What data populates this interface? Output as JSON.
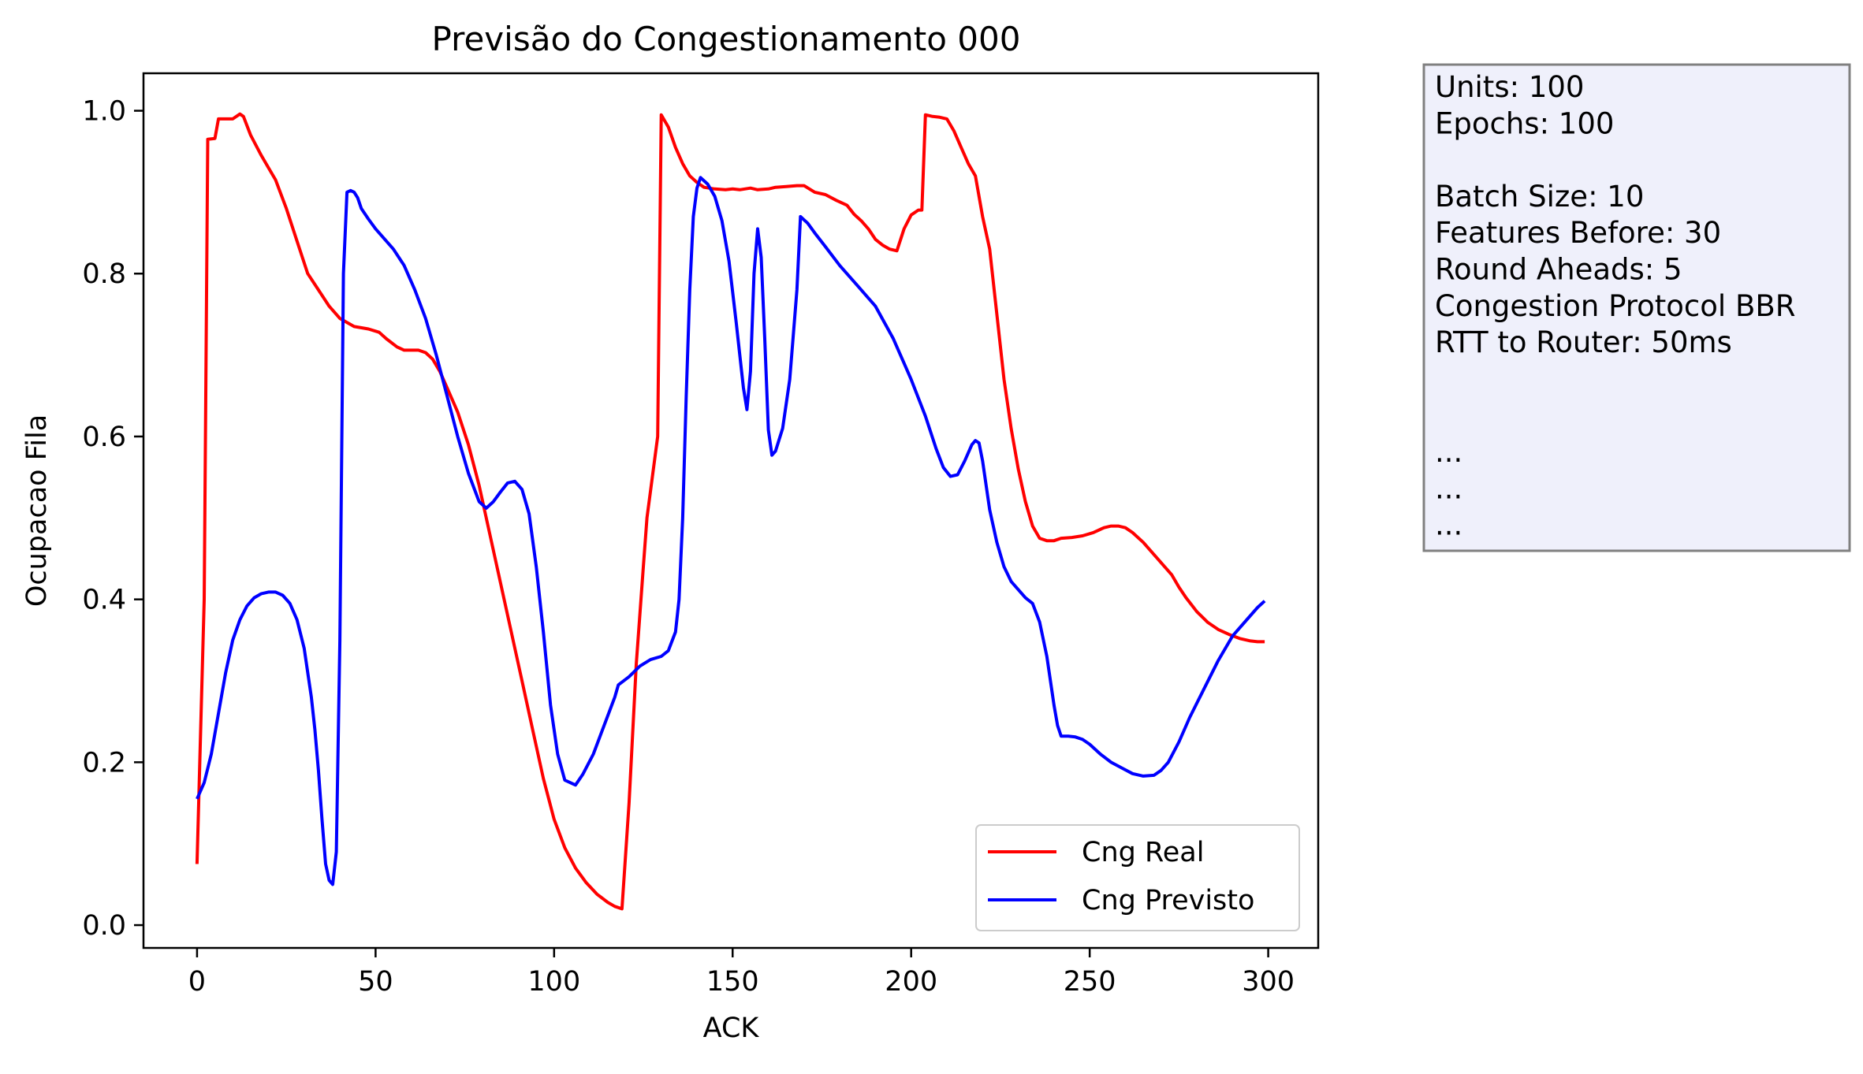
{
  "chart_data": {
    "type": "line",
    "title": "Previsão do Congestionamento 000",
    "xlabel": "ACK",
    "ylabel": "Ocupacao Fila",
    "xlim": [
      -15,
      314
    ],
    "ylim": [
      -0.028,
      1.046
    ],
    "xticks": [
      0,
      50,
      100,
      150,
      200,
      250,
      300
    ],
    "xtick_labels": [
      "0",
      "50",
      "100",
      "150",
      "200",
      "250",
      "300"
    ],
    "yticks": [
      0.0,
      0.2,
      0.4,
      0.6,
      0.8,
      1.0
    ],
    "ytick_labels": [
      "0.0",
      "0.2",
      "0.4",
      "0.6",
      "0.8",
      "1.0"
    ],
    "grid": false,
    "legend_position": "lower-right",
    "series": [
      {
        "name": "Cng Real",
        "color": "#ff0000",
        "points": [
          [
            0,
            0.075
          ],
          [
            2,
            0.4
          ],
          [
            3,
            0.965
          ],
          [
            5,
            0.966
          ],
          [
            6,
            0.99
          ],
          [
            8,
            0.99
          ],
          [
            10,
            0.99
          ],
          [
            12,
            0.996
          ],
          [
            13,
            0.993
          ],
          [
            15,
            0.97
          ],
          [
            18,
            0.945
          ],
          [
            20,
            0.93
          ],
          [
            22,
            0.915
          ],
          [
            25,
            0.88
          ],
          [
            28,
            0.84
          ],
          [
            31,
            0.8
          ],
          [
            34,
            0.78
          ],
          [
            37,
            0.76
          ],
          [
            40,
            0.745
          ],
          [
            44,
            0.735
          ],
          [
            48,
            0.732
          ],
          [
            51,
            0.728
          ],
          [
            53,
            0.72
          ],
          [
            56,
            0.71
          ],
          [
            58,
            0.706
          ],
          [
            60,
            0.706
          ],
          [
            62,
            0.706
          ],
          [
            64,
            0.703
          ],
          [
            66,
            0.695
          ],
          [
            68,
            0.68
          ],
          [
            70,
            0.66
          ],
          [
            73,
            0.63
          ],
          [
            76,
            0.59
          ],
          [
            79,
            0.54
          ],
          [
            82,
            0.48
          ],
          [
            85,
            0.42
          ],
          [
            88,
            0.36
          ],
          [
            91,
            0.3
          ],
          [
            94,
            0.24
          ],
          [
            97,
            0.18
          ],
          [
            100,
            0.13
          ],
          [
            103,
            0.095
          ],
          [
            106,
            0.07
          ],
          [
            109,
            0.052
          ],
          [
            112,
            0.038
          ],
          [
            115,
            0.028
          ],
          [
            117,
            0.023
          ],
          [
            119,
            0.02
          ],
          [
            121,
            0.15
          ],
          [
            123,
            0.32
          ],
          [
            125,
            0.44
          ],
          [
            126,
            0.5
          ],
          [
            129,
            0.6
          ],
          [
            130,
            0.995
          ],
          [
            132,
            0.98
          ],
          [
            134,
            0.955
          ],
          [
            136,
            0.935
          ],
          [
            138,
            0.92
          ],
          [
            140,
            0.912
          ],
          [
            142,
            0.906
          ],
          [
            145,
            0.904
          ],
          [
            148,
            0.903
          ],
          [
            150,
            0.904
          ],
          [
            152,
            0.903
          ],
          [
            155,
            0.905
          ],
          [
            157,
            0.903
          ],
          [
            160,
            0.904
          ],
          [
            162,
            0.906
          ],
          [
            165,
            0.907
          ],
          [
            168,
            0.908
          ],
          [
            170,
            0.908
          ],
          [
            173,
            0.9
          ],
          [
            176,
            0.897
          ],
          [
            179,
            0.89
          ],
          [
            182,
            0.884
          ],
          [
            184,
            0.873
          ],
          [
            186,
            0.865
          ],
          [
            188,
            0.855
          ],
          [
            190,
            0.842
          ],
          [
            192,
            0.835
          ],
          [
            194,
            0.83
          ],
          [
            196,
            0.828
          ],
          [
            198,
            0.855
          ],
          [
            200,
            0.872
          ],
          [
            202,
            0.878
          ],
          [
            203,
            0.878
          ],
          [
            204,
            0.995
          ],
          [
            206,
            0.993
          ],
          [
            208,
            0.992
          ],
          [
            210,
            0.99
          ],
          [
            212,
            0.975
          ],
          [
            214,
            0.955
          ],
          [
            216,
            0.935
          ],
          [
            218,
            0.92
          ],
          [
            220,
            0.87
          ],
          [
            222,
            0.83
          ],
          [
            224,
            0.75
          ],
          [
            226,
            0.67
          ],
          [
            228,
            0.61
          ],
          [
            230,
            0.56
          ],
          [
            232,
            0.52
          ],
          [
            234,
            0.49
          ],
          [
            236,
            0.475
          ],
          [
            238,
            0.472
          ],
          [
            240,
            0.472
          ],
          [
            242,
            0.475
          ],
          [
            245,
            0.476
          ],
          [
            248,
            0.478
          ],
          [
            251,
            0.482
          ],
          [
            254,
            0.488
          ],
          [
            256,
            0.49
          ],
          [
            258,
            0.49
          ],
          [
            260,
            0.488
          ],
          [
            262,
            0.482
          ],
          [
            265,
            0.47
          ],
          [
            268,
            0.455
          ],
          [
            271,
            0.44
          ],
          [
            273,
            0.43
          ],
          [
            275,
            0.415
          ],
          [
            277,
            0.402
          ],
          [
            280,
            0.385
          ],
          [
            283,
            0.372
          ],
          [
            286,
            0.363
          ],
          [
            289,
            0.357
          ],
          [
            292,
            0.352
          ],
          [
            295,
            0.349
          ],
          [
            297,
            0.348
          ],
          [
            299,
            0.348
          ]
        ]
      },
      {
        "name": "Cng Previsto",
        "color": "#0000ff",
        "points": [
          [
            0,
            0.155
          ],
          [
            2,
            0.175
          ],
          [
            4,
            0.21
          ],
          [
            6,
            0.26
          ],
          [
            8,
            0.31
          ],
          [
            10,
            0.35
          ],
          [
            12,
            0.375
          ],
          [
            14,
            0.392
          ],
          [
            16,
            0.402
          ],
          [
            18,
            0.407
          ],
          [
            20,
            0.409
          ],
          [
            22,
            0.409
          ],
          [
            24,
            0.405
          ],
          [
            26,
            0.395
          ],
          [
            28,
            0.375
          ],
          [
            30,
            0.34
          ],
          [
            32,
            0.28
          ],
          [
            33,
            0.24
          ],
          [
            34,
            0.19
          ],
          [
            35,
            0.13
          ],
          [
            36,
            0.075
          ],
          [
            37,
            0.055
          ],
          [
            38,
            0.05
          ],
          [
            39,
            0.09
          ],
          [
            40,
            0.35
          ],
          [
            41,
            0.8
          ],
          [
            42,
            0.9
          ],
          [
            43,
            0.902
          ],
          [
            44,
            0.9
          ],
          [
            45,
            0.893
          ],
          [
            46,
            0.88
          ],
          [
            48,
            0.867
          ],
          [
            50,
            0.855
          ],
          [
            52,
            0.845
          ],
          [
            55,
            0.83
          ],
          [
            58,
            0.81
          ],
          [
            61,
            0.78
          ],
          [
            64,
            0.745
          ],
          [
            67,
            0.7
          ],
          [
            70,
            0.65
          ],
          [
            73,
            0.6
          ],
          [
            76,
            0.555
          ],
          [
            79,
            0.52
          ],
          [
            81,
            0.512
          ],
          [
            83,
            0.52
          ],
          [
            85,
            0.532
          ],
          [
            87,
            0.543
          ],
          [
            89,
            0.545
          ],
          [
            91,
            0.535
          ],
          [
            93,
            0.505
          ],
          [
            95,
            0.44
          ],
          [
            97,
            0.36
          ],
          [
            99,
            0.27
          ],
          [
            101,
            0.21
          ],
          [
            103,
            0.178
          ],
          [
            106,
            0.172
          ],
          [
            108,
            0.185
          ],
          [
            111,
            0.21
          ],
          [
            114,
            0.245
          ],
          [
            117,
            0.28
          ],
          [
            118,
            0.295
          ],
          [
            121,
            0.305
          ],
          [
            124,
            0.318
          ],
          [
            127,
            0.326
          ],
          [
            130,
            0.33
          ],
          [
            132,
            0.337
          ],
          [
            134,
            0.36
          ],
          [
            135,
            0.4
          ],
          [
            136,
            0.5
          ],
          [
            137,
            0.65
          ],
          [
            138,
            0.78
          ],
          [
            139,
            0.87
          ],
          [
            140,
            0.905
          ],
          [
            141,
            0.918
          ],
          [
            143,
            0.91
          ],
          [
            145,
            0.895
          ],
          [
            147,
            0.865
          ],
          [
            149,
            0.815
          ],
          [
            151,
            0.74
          ],
          [
            153,
            0.66
          ],
          [
            154,
            0.633
          ],
          [
            155,
            0.68
          ],
          [
            156,
            0.8
          ],
          [
            157,
            0.855
          ],
          [
            158,
            0.82
          ],
          [
            159,
            0.72
          ],
          [
            160,
            0.608
          ],
          [
            161,
            0.577
          ],
          [
            162,
            0.582
          ],
          [
            164,
            0.61
          ],
          [
            166,
            0.67
          ],
          [
            168,
            0.78
          ],
          [
            169,
            0.87
          ],
          [
            171,
            0.862
          ],
          [
            173,
            0.85
          ],
          [
            176,
            0.833
          ],
          [
            180,
            0.81
          ],
          [
            185,
            0.785
          ],
          [
            190,
            0.76
          ],
          [
            195,
            0.72
          ],
          [
            200,
            0.67
          ],
          [
            204,
            0.625
          ],
          [
            207,
            0.585
          ],
          [
            209,
            0.562
          ],
          [
            211,
            0.551
          ],
          [
            213,
            0.553
          ],
          [
            215,
            0.57
          ],
          [
            217,
            0.59
          ],
          [
            218,
            0.595
          ],
          [
            219,
            0.592
          ],
          [
            220,
            0.57
          ],
          [
            222,
            0.51
          ],
          [
            224,
            0.47
          ],
          [
            226,
            0.44
          ],
          [
            228,
            0.422
          ],
          [
            230,
            0.412
          ],
          [
            232,
            0.402
          ],
          [
            234,
            0.395
          ],
          [
            236,
            0.372
          ],
          [
            238,
            0.33
          ],
          [
            240,
            0.27
          ],
          [
            241,
            0.245
          ],
          [
            242,
            0.232
          ],
          [
            244,
            0.232
          ],
          [
            246,
            0.231
          ],
          [
            248,
            0.228
          ],
          [
            250,
            0.222
          ],
          [
            253,
            0.21
          ],
          [
            256,
            0.2
          ],
          [
            259,
            0.193
          ],
          [
            262,
            0.186
          ],
          [
            265,
            0.183
          ],
          [
            268,
            0.184
          ],
          [
            270,
            0.19
          ],
          [
            272,
            0.2
          ],
          [
            275,
            0.225
          ],
          [
            278,
            0.255
          ],
          [
            282,
            0.29
          ],
          [
            286,
            0.325
          ],
          [
            290,
            0.355
          ],
          [
            294,
            0.375
          ],
          [
            297,
            0.39
          ],
          [
            299,
            0.398
          ]
        ]
      }
    ]
  },
  "info_box": {
    "lines": [
      "Units: 100",
      "Epochs: 100",
      "",
      "Batch Size: 10",
      "Features Before: 30",
      "Round Aheads: 5",
      "Congestion Protocol BBR",
      "RTT to Router: 50ms",
      "",
      "",
      "...",
      "...",
      "..."
    ]
  }
}
